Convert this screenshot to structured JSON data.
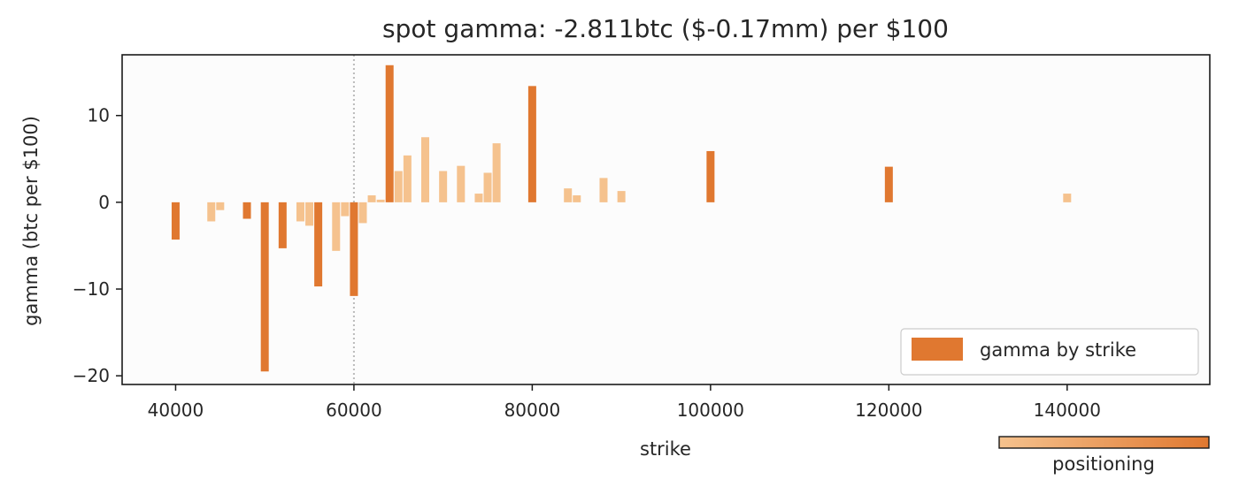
{
  "chart_data": {
    "type": "bar",
    "title": "spot gamma: -2.811btc ($-0.17mm) per $100",
    "xlabel": "strike",
    "ylabel": "gamma (btc per $100)",
    "xlim": [
      34000,
      156000
    ],
    "ylim": [
      -21,
      17
    ],
    "xticks": [
      40000,
      60000,
      80000,
      100000,
      120000,
      140000
    ],
    "yticks": [
      10,
      0,
      -10,
      -20
    ],
    "ytick_labels": [
      "10",
      "0",
      "−10",
      "−20"
    ],
    "spot_line_x": 60000,
    "legend": {
      "label": "gamma by strike",
      "placement": "lower-right"
    },
    "colorbar": {
      "label": "positioning",
      "color_low": "#f5c28e",
      "color_high": "#e07830"
    },
    "colors": {
      "background": "#fcfcfc",
      "bar_strong": "#e07830",
      "bar_light": "#f5c28e",
      "spot_line": "#bbbbbb"
    },
    "bars": [
      {
        "x": 40000,
        "y": -4.3,
        "intensity": "strong"
      },
      {
        "x": 44000,
        "y": -2.2,
        "intensity": "light"
      },
      {
        "x": 45000,
        "y": -0.9,
        "intensity": "light"
      },
      {
        "x": 48000,
        "y": -1.9,
        "intensity": "strong"
      },
      {
        "x": 50000,
        "y": -19.5,
        "intensity": "strong"
      },
      {
        "x": 52000,
        "y": -5.3,
        "intensity": "strong"
      },
      {
        "x": 54000,
        "y": -2.2,
        "intensity": "light"
      },
      {
        "x": 55000,
        "y": -2.7,
        "intensity": "light"
      },
      {
        "x": 56000,
        "y": -9.7,
        "intensity": "strong"
      },
      {
        "x": 58000,
        "y": -5.6,
        "intensity": "light"
      },
      {
        "x": 59000,
        "y": -1.6,
        "intensity": "light"
      },
      {
        "x": 60000,
        "y": -10.8,
        "intensity": "strong"
      },
      {
        "x": 61000,
        "y": -2.4,
        "intensity": "light"
      },
      {
        "x": 62000,
        "y": 0.8,
        "intensity": "light"
      },
      {
        "x": 63000,
        "y": 0.3,
        "intensity": "light"
      },
      {
        "x": 64000,
        "y": 15.8,
        "intensity": "strong"
      },
      {
        "x": 65000,
        "y": 3.6,
        "intensity": "light"
      },
      {
        "x": 66000,
        "y": 5.4,
        "intensity": "light"
      },
      {
        "x": 68000,
        "y": 7.5,
        "intensity": "light"
      },
      {
        "x": 70000,
        "y": 3.6,
        "intensity": "light"
      },
      {
        "x": 72000,
        "y": 4.2,
        "intensity": "light"
      },
      {
        "x": 74000,
        "y": 1.0,
        "intensity": "light"
      },
      {
        "x": 75000,
        "y": 3.4,
        "intensity": "light"
      },
      {
        "x": 76000,
        "y": 6.8,
        "intensity": "light"
      },
      {
        "x": 80000,
        "y": 13.4,
        "intensity": "strong"
      },
      {
        "x": 84000,
        "y": 1.6,
        "intensity": "light"
      },
      {
        "x": 85000,
        "y": 0.8,
        "intensity": "light"
      },
      {
        "x": 88000,
        "y": 2.8,
        "intensity": "light"
      },
      {
        "x": 90000,
        "y": 1.3,
        "intensity": "light"
      },
      {
        "x": 100000,
        "y": 5.9,
        "intensity": "strong"
      },
      {
        "x": 120000,
        "y": 4.1,
        "intensity": "strong"
      },
      {
        "x": 140000,
        "y": 1.0,
        "intensity": "light"
      }
    ]
  }
}
